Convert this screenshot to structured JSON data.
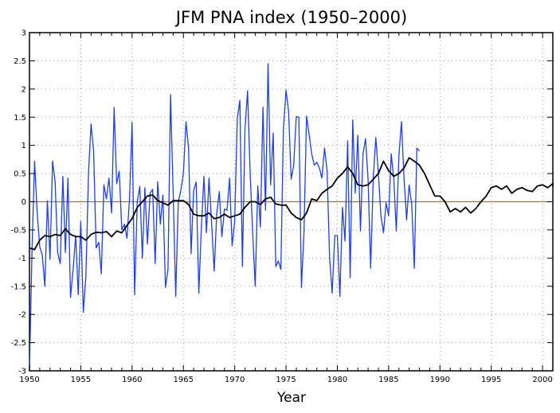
{
  "chart_data": {
    "type": "line",
    "title": "JFM PNA index (1950–2000)",
    "xlabel": "Year",
    "ylabel": "",
    "xlim": [
      1950,
      2001
    ],
    "ylim": [
      -3,
      3
    ],
    "x_ticks": [
      1950,
      1955,
      1960,
      1965,
      1970,
      1975,
      1980,
      1985,
      1990,
      1995,
      2000
    ],
    "x_tick_labels": [
      "1950",
      "1955",
      "1960",
      "1965",
      "1970",
      "1975",
      "1980",
      "1985",
      "1990",
      "1995",
      "2000"
    ],
    "y_ticks": [
      -3,
      -2.5,
      -2,
      -1.5,
      -1,
      -0.5,
      0,
      0.5,
      1,
      1.5,
      2,
      2.5,
      3
    ],
    "y_tick_labels": [
      "-3",
      "-2.5",
      "-2",
      "-1.5",
      "-1",
      "-0.5",
      "0",
      "0.5",
      "1",
      "1.5",
      "2",
      "2.5",
      "3"
    ],
    "grid": true,
    "reference_line": {
      "y": 0,
      "color": "#e05050"
    },
    "series": [
      {
        "color": "#1f3fe0",
        "points": [
          [
            1950.0,
            -3.0
          ],
          [
            1950.25,
            -0.85
          ],
          [
            1950.5,
            0.72
          ],
          [
            1950.75,
            -0.2
          ],
          [
            1951.0,
            -0.8
          ],
          [
            1951.25,
            -0.95
          ],
          [
            1951.5,
            -1.5
          ],
          [
            1951.75,
            0.02
          ],
          [
            1952.0,
            -1.02
          ],
          [
            1952.25,
            0.72
          ],
          [
            1952.5,
            0.35
          ],
          [
            1952.75,
            -0.9
          ],
          [
            1953.0,
            -1.1
          ],
          [
            1953.25,
            0.45
          ],
          [
            1953.5,
            -0.9
          ],
          [
            1953.75,
            0.42
          ],
          [
            1954.0,
            -1.7
          ],
          [
            1954.25,
            -1.2
          ],
          [
            1954.5,
            -0.6
          ],
          [
            1954.75,
            -1.65
          ],
          [
            1955.0,
            -0.35
          ],
          [
            1955.25,
            -1.96
          ],
          [
            1955.5,
            -1.3
          ],
          [
            1955.75,
            0.5
          ],
          [
            1956.0,
            1.38
          ],
          [
            1956.25,
            0.9
          ],
          [
            1956.5,
            -0.82
          ],
          [
            1956.75,
            -0.72
          ],
          [
            1957.0,
            -1.28
          ],
          [
            1957.25,
            0.3
          ],
          [
            1957.5,
            0.05
          ],
          [
            1957.75,
            0.42
          ],
          [
            1958.0,
            -0.2
          ],
          [
            1958.25,
            1.67
          ],
          [
            1958.5,
            0.32
          ],
          [
            1958.75,
            0.54
          ],
          [
            1959.0,
            -0.5
          ],
          [
            1959.25,
            -0.4
          ],
          [
            1959.5,
            -0.65
          ],
          [
            1959.75,
            0.05
          ],
          [
            1960.0,
            1.41
          ],
          [
            1960.25,
            -1.65
          ],
          [
            1960.5,
            0.0
          ],
          [
            1960.75,
            0.27
          ],
          [
            1961.0,
            -1.0
          ],
          [
            1961.25,
            0.25
          ],
          [
            1961.5,
            -0.75
          ],
          [
            1961.75,
            0.15
          ],
          [
            1962.0,
            0.22
          ],
          [
            1962.25,
            -1.1
          ],
          [
            1962.5,
            0.35
          ],
          [
            1962.75,
            -0.4
          ],
          [
            1963.0,
            0.12
          ],
          [
            1963.25,
            -1.52
          ],
          [
            1963.5,
            -1.2
          ],
          [
            1963.75,
            1.9
          ],
          [
            1964.0,
            0.15
          ],
          [
            1964.25,
            -1.68
          ],
          [
            1964.5,
            0.0
          ],
          [
            1964.75,
            0.2
          ],
          [
            1965.0,
            0.5
          ],
          [
            1965.25,
            1.42
          ],
          [
            1965.5,
            0.95
          ],
          [
            1965.75,
            -0.92
          ],
          [
            1966.0,
            0.2
          ],
          [
            1966.25,
            0.35
          ],
          [
            1966.5,
            -1.62
          ],
          [
            1966.75,
            -0.45
          ],
          [
            1967.0,
            0.45
          ],
          [
            1967.25,
            -0.55
          ],
          [
            1967.5,
            0.42
          ],
          [
            1967.75,
            -0.4
          ],
          [
            1968.0,
            -1.23
          ],
          [
            1968.25,
            -0.2
          ],
          [
            1968.5,
            0.18
          ],
          [
            1968.75,
            -0.62
          ],
          [
            1969.0,
            -0.13
          ],
          [
            1969.25,
            -0.15
          ],
          [
            1969.5,
            0.42
          ],
          [
            1969.75,
            -0.78
          ],
          [
            1970.0,
            -0.35
          ],
          [
            1970.25,
            1.48
          ],
          [
            1970.5,
            1.8
          ],
          [
            1970.75,
            -1.15
          ],
          [
            1971.0,
            1.28
          ],
          [
            1971.25,
            1.97
          ],
          [
            1971.5,
            0.52
          ],
          [
            1971.75,
            -0.55
          ],
          [
            1972.0,
            -1.5
          ],
          [
            1972.25,
            0.28
          ],
          [
            1972.5,
            -0.45
          ],
          [
            1972.75,
            1.68
          ],
          [
            1973.0,
            -0.15
          ],
          [
            1973.25,
            2.45
          ],
          [
            1973.5,
            0.3
          ],
          [
            1973.75,
            1.22
          ],
          [
            1974.0,
            -1.15
          ],
          [
            1974.25,
            -1.05
          ],
          [
            1974.5,
            -1.2
          ],
          [
            1974.75,
            1.3
          ],
          [
            1975.0,
            1.98
          ],
          [
            1975.25,
            1.6
          ],
          [
            1975.5,
            0.4
          ],
          [
            1975.75,
            0.65
          ],
          [
            1976.0,
            1.51
          ],
          [
            1976.25,
            1.5
          ],
          [
            1976.5,
            -1.52
          ],
          [
            1976.75,
            -0.55
          ],
          [
            1977.0,
            1.52
          ],
          [
            1977.25,
            1.2
          ],
          [
            1977.5,
            0.85
          ],
          [
            1977.75,
            0.65
          ],
          [
            1978.0,
            0.7
          ],
          [
            1978.25,
            0.6
          ],
          [
            1978.5,
            0.42
          ],
          [
            1978.75,
            0.95
          ],
          [
            1979.0,
            0.55
          ],
          [
            1979.25,
            -1.0
          ],
          [
            1979.5,
            -1.62
          ],
          [
            1979.75,
            -0.6
          ],
          [
            1980.0,
            -0.6
          ],
          [
            1980.25,
            -1.68
          ],
          [
            1980.5,
            -0.1
          ],
          [
            1980.75,
            -0.7
          ],
          [
            1981.0,
            1.08
          ],
          [
            1981.25,
            -1.35
          ],
          [
            1981.5,
            1.45
          ],
          [
            1981.75,
            0.15
          ],
          [
            1982.0,
            1.18
          ],
          [
            1982.25,
            -0.52
          ],
          [
            1982.5,
            0.85
          ],
          [
            1982.75,
            1.12
          ],
          [
            1983.0,
            0.38
          ],
          [
            1983.25,
            -1.18
          ],
          [
            1983.5,
            0.42
          ],
          [
            1983.75,
            1.14
          ],
          [
            1984.0,
            0.5
          ],
          [
            1984.25,
            -0.25
          ],
          [
            1984.5,
            -0.55
          ],
          [
            1984.75,
            -0.02
          ],
          [
            1985.0,
            -0.25
          ],
          [
            1985.25,
            0.85
          ],
          [
            1985.5,
            0.42
          ],
          [
            1985.75,
            -0.52
          ],
          [
            1986.0,
            0.82
          ],
          [
            1986.25,
            1.42
          ],
          [
            1986.5,
            0.42
          ],
          [
            1986.75,
            -0.32
          ],
          [
            1987.0,
            0.3
          ],
          [
            1987.25,
            -0.05
          ],
          [
            1987.5,
            -1.18
          ],
          [
            1987.75,
            0.95
          ],
          [
            1988.0,
            0.9
          ]
        ],
        "note_x_scale": "points use a quarter-year step"
      },
      {
        "color": "#000000",
        "points": [
          [
            1950.0,
            -0.82
          ],
          [
            1950.5,
            -0.85
          ],
          [
            1951.0,
            -0.68
          ],
          [
            1951.5,
            -0.6
          ],
          [
            1952.0,
            -0.62
          ],
          [
            1952.5,
            -0.58
          ],
          [
            1953.0,
            -0.6
          ],
          [
            1953.5,
            -0.48
          ],
          [
            1954.0,
            -0.58
          ],
          [
            1954.5,
            -0.62
          ],
          [
            1955.0,
            -0.62
          ],
          [
            1955.5,
            -0.68
          ],
          [
            1956.0,
            -0.58
          ],
          [
            1956.5,
            -0.54
          ],
          [
            1957.0,
            -0.55
          ],
          [
            1957.5,
            -0.53
          ],
          [
            1958.0,
            -0.62
          ],
          [
            1958.5,
            -0.52
          ],
          [
            1959.0,
            -0.55
          ],
          [
            1959.5,
            -0.42
          ],
          [
            1960.0,
            -0.3
          ],
          [
            1960.5,
            -0.1
          ],
          [
            1961.0,
            0.0
          ],
          [
            1961.5,
            0.1
          ],
          [
            1962.0,
            0.12
          ],
          [
            1962.5,
            0.02
          ],
          [
            1963.0,
            -0.02
          ],
          [
            1963.5,
            -0.06
          ],
          [
            1964.0,
            0.02
          ],
          [
            1964.5,
            0.02
          ],
          [
            1965.0,
            0.02
          ],
          [
            1965.5,
            -0.05
          ],
          [
            1966.0,
            -0.22
          ],
          [
            1966.5,
            -0.25
          ],
          [
            1967.0,
            -0.25
          ],
          [
            1967.5,
            -0.2
          ],
          [
            1968.0,
            -0.3
          ],
          [
            1968.5,
            -0.28
          ],
          [
            1969.0,
            -0.22
          ],
          [
            1969.5,
            -0.28
          ],
          [
            1970.0,
            -0.25
          ],
          [
            1970.5,
            -0.22
          ],
          [
            1971.0,
            -0.1
          ],
          [
            1971.5,
            0.0
          ],
          [
            1972.0,
            0.0
          ],
          [
            1972.5,
            -0.05
          ],
          [
            1973.0,
            0.05
          ],
          [
            1973.5,
            0.08
          ],
          [
            1974.0,
            -0.04
          ],
          [
            1974.5,
            -0.06
          ],
          [
            1975.0,
            -0.06
          ],
          [
            1975.5,
            -0.2
          ],
          [
            1976.0,
            -0.28
          ],
          [
            1976.5,
            -0.32
          ],
          [
            1977.0,
            -0.2
          ],
          [
            1977.5,
            0.05
          ],
          [
            1978.0,
            0.02
          ],
          [
            1978.5,
            0.15
          ],
          [
            1979.0,
            0.22
          ],
          [
            1979.5,
            0.28
          ],
          [
            1980.0,
            0.42
          ],
          [
            1980.5,
            0.5
          ],
          [
            1981.0,
            0.62
          ],
          [
            1981.5,
            0.5
          ],
          [
            1982.0,
            0.3
          ],
          [
            1982.5,
            0.28
          ],
          [
            1983.0,
            0.3
          ],
          [
            1983.5,
            0.4
          ],
          [
            1984.0,
            0.5
          ],
          [
            1984.5,
            0.72
          ],
          [
            1985.0,
            0.55
          ],
          [
            1985.5,
            0.45
          ],
          [
            1986.0,
            0.5
          ],
          [
            1986.5,
            0.6
          ],
          [
            1987.0,
            0.78
          ],
          [
            1987.5,
            0.72
          ],
          [
            1988.0,
            0.65
          ],
          [
            1988.5,
            0.5
          ],
          [
            1989.0,
            0.3
          ],
          [
            1989.5,
            0.1
          ],
          [
            1990.0,
            0.1
          ],
          [
            1990.5,
            0.0
          ],
          [
            1991.0,
            -0.18
          ],
          [
            1991.5,
            -0.12
          ],
          [
            1992.0,
            -0.18
          ],
          [
            1992.5,
            -0.1
          ],
          [
            1993.0,
            -0.2
          ],
          [
            1993.5,
            -0.12
          ],
          [
            1994.0,
            0.0
          ],
          [
            1994.5,
            0.1
          ],
          [
            1995.0,
            0.25
          ],
          [
            1995.5,
            0.28
          ],
          [
            1996.0,
            0.22
          ],
          [
            1996.5,
            0.28
          ],
          [
            1997.0,
            0.15
          ],
          [
            1997.5,
            0.22
          ],
          [
            1998.0,
            0.25
          ],
          [
            1998.5,
            0.2
          ],
          [
            1999.0,
            0.18
          ],
          [
            1999.5,
            0.28
          ],
          [
            2000.0,
            0.3
          ],
          [
            2000.5,
            0.25
          ],
          [
            2001.0,
            0.32
          ],
          [
            2001.0,
            0.28
          ]
        ]
      }
    ]
  }
}
